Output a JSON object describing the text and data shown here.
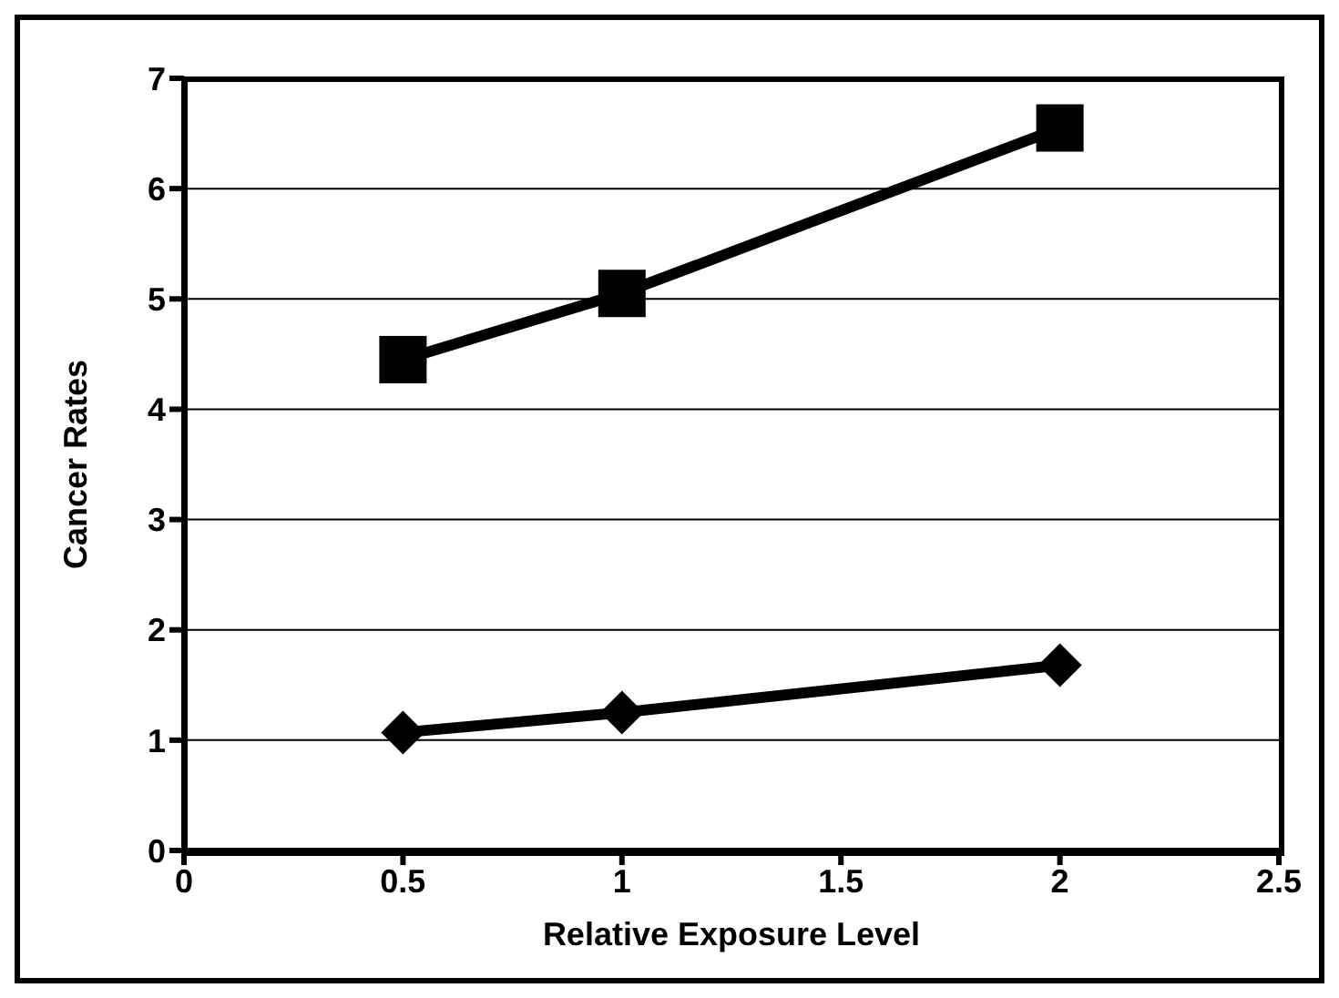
{
  "chart_data": {
    "type": "line",
    "xlabel": "Relative Exposure Level",
    "ylabel": "Cancer Rates",
    "x": [
      0.5,
      1,
      2
    ],
    "series": [
      {
        "color": "#000000",
        "values": [
          4.45,
          5.05,
          6.55
        ],
        "marker": "square"
      },
      {
        "color": "#000000",
        "values": [
          1.07,
          1.25,
          1.68
        ],
        "marker": "diamond"
      }
    ],
    "xlim": [
      0,
      2.5
    ],
    "xticks": [
      0,
      0.5,
      1,
      1.5,
      2,
      2.5
    ],
    "ylim": [
      0,
      7
    ],
    "yticks": [
      0,
      1,
      2,
      3,
      4,
      5,
      6,
      7
    ],
    "grid": "y",
    "legend": false,
    "line_style": "solid"
  }
}
